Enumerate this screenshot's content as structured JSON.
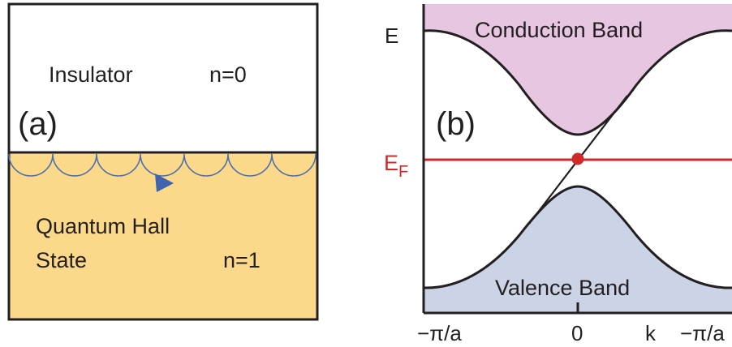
{
  "panel_a": {
    "label": "(a)",
    "top_region": {
      "name": "Insulator",
      "n": "n=0"
    },
    "bottom_region": {
      "name_line1": "Quantum Hall",
      "name_line2": "State",
      "n": "n=1"
    }
  },
  "panel_b": {
    "label": "(b)",
    "energy_axis_label": "E",
    "fermi_label_main": "E",
    "fermi_label_sub": "F",
    "conduction_band": "Conduction Band",
    "valence_band": "Valence Band",
    "k_labels": {
      "left": "−π/a",
      "center": "0",
      "k": "k",
      "right": "−π/a"
    }
  },
  "colors": {
    "qh_fill": "#fcd98a",
    "conduction_fill": "#e6c6e0",
    "valence_fill": "#cbd3e6",
    "fermi_line": "#d12a2a",
    "edge_arcs": "#4a6fb0",
    "arrow": "#3f63b0"
  }
}
